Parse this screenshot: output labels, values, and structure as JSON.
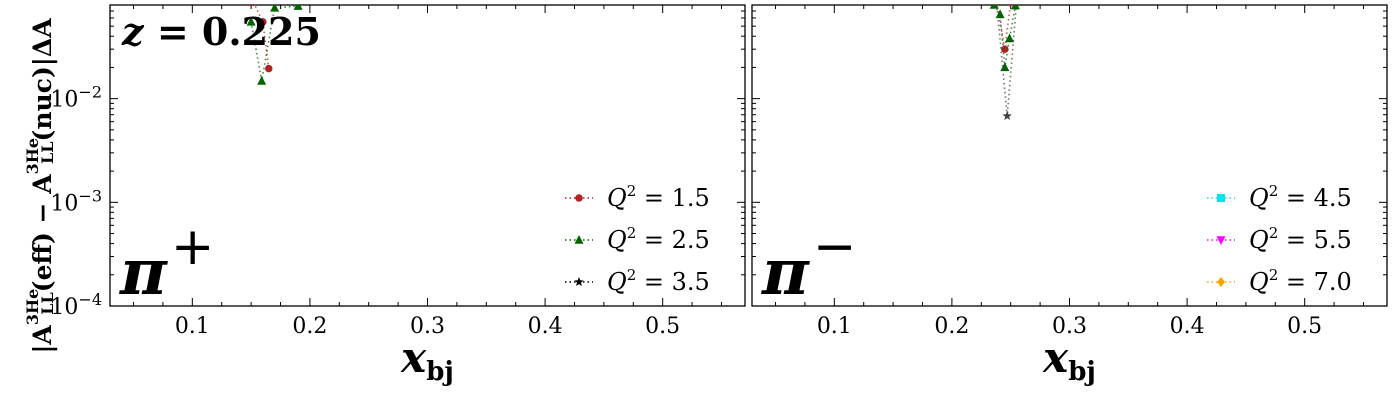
{
  "chart_data": [
    {
      "type": "line",
      "panel_label": "π",
      "panel_sign": "+",
      "annotation": "z = 0.225",
      "xlabel": "x",
      "xlabel_sub": "bj",
      "ylabel_parts": [
        "|A",
        "LL",
        "3He",
        "(eff) − A",
        "LL",
        "3He",
        "(nuc)|ΔA"
      ],
      "xlim": [
        0.03,
        0.57
      ],
      "ylim": [
        0.0001,
        0.08
      ],
      "yscale": "log",
      "x_ticks": [
        0.1,
        0.2,
        0.3,
        0.4,
        0.5
      ],
      "x_tick_labels": [
        "0.1",
        "0.2",
        "0.3",
        "0.4",
        "0.5"
      ],
      "y_ticks": [
        0.0001,
        0.001,
        0.01
      ],
      "y_tick_labels": [
        "10−4",
        "10−3",
        "10−2"
      ],
      "legend_position": "lower-right",
      "series": [
        {
          "name": "Q² = 1.5",
          "color": "#b22222",
          "marker": "circle",
          "x": [
            0.152,
            0.16,
            0.165
          ],
          "y": [
            0.085,
            0.055,
            0.0195
          ]
        },
        {
          "name": "Q² = 2.5",
          "color": "#006400",
          "marker": "triangle-up",
          "x": [
            0.15,
            0.159,
            0.17,
            0.19
          ],
          "y": [
            0.055,
            0.0148,
            0.075,
            0.078
          ]
        },
        {
          "name": "Q² = 3.5",
          "color": "#000000",
          "marker": "star",
          "x": [],
          "y": []
        }
      ]
    },
    {
      "type": "line",
      "panel_label": "π",
      "panel_sign": "−",
      "xlabel": "x",
      "xlabel_sub": "bj",
      "xlim": [
        0.03,
        0.57
      ],
      "ylim": [
        0.0001,
        0.08
      ],
      "yscale": "log",
      "x_ticks": [
        0.1,
        0.2,
        0.3,
        0.4,
        0.5
      ],
      "x_tick_labels": [
        "0.1",
        "0.2",
        "0.3",
        "0.4",
        "0.5"
      ],
      "y_ticks": [
        0.0001,
        0.001,
        0.01
      ],
      "legend_position": "lower-right",
      "series": [
        {
          "name": "Q² = 1.5",
          "color": "#b22222",
          "marker": "circle",
          "in_legend": false,
          "x": [
            0.238,
            0.245,
            0.25
          ],
          "y": [
            0.085,
            0.03,
            0.085
          ]
        },
        {
          "name": "Q² = 2.5",
          "color": "#006400",
          "marker": "triangle-up",
          "in_legend": false,
          "x": [
            0.236,
            0.241,
            0.245,
            0.249,
            0.254
          ],
          "y": [
            0.08,
            0.065,
            0.02,
            0.038,
            0.079
          ]
        },
        {
          "name": "Q² = 3.5",
          "color": "#444444",
          "marker": "star",
          "in_legend": false,
          "x": [
            0.238,
            0.247,
            0.255
          ],
          "y": [
            0.085,
            0.0068,
            0.085
          ]
        },
        {
          "name": "Q² = 4.5",
          "color": "#00e5ee",
          "marker": "square",
          "x": [],
          "y": []
        },
        {
          "name": "Q² = 5.5",
          "color": "#ff00ff",
          "marker": "triangle-down",
          "x": [],
          "y": []
        },
        {
          "name": "Q² = 7.0",
          "color": "#ffa500",
          "marker": "diamond",
          "x": [],
          "y": []
        }
      ]
    }
  ]
}
